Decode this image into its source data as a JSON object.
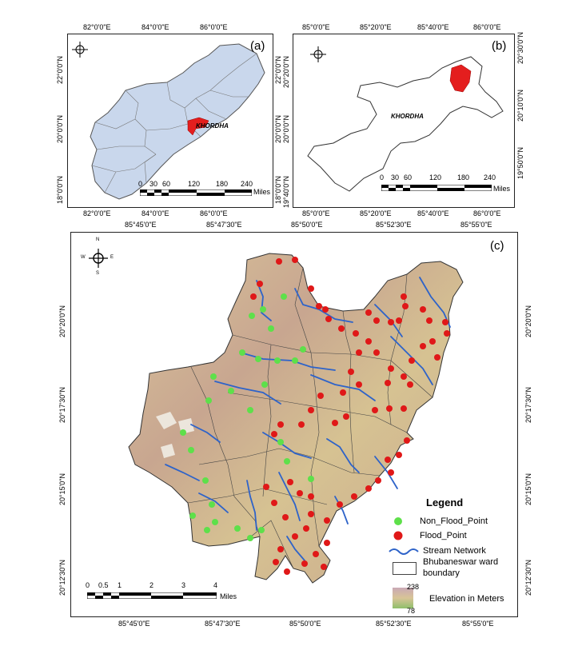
{
  "panel_a": {
    "letter": "(a)",
    "top_ticks": [
      "82°0'0\"E",
      "84°0'0\"E",
      "86°0'0\"E"
    ],
    "bottom_ticks": [
      "82°0'0\"E",
      "84°0'0\"E",
      "86°0'0\"E"
    ],
    "left_ticks": [
      "22°0'0\"N",
      "20°0'0\"N",
      "18°0'0\"N"
    ],
    "right_ticks": [
      "22°0'0\"N",
      "20°0'0\"N",
      "18°0'0\"N"
    ],
    "place": "KHORDHA",
    "scale": [
      "0",
      "30",
      "60",
      "120",
      "180",
      "240"
    ],
    "scale_unit": "Miles"
  },
  "panel_b": {
    "letter": "(b)",
    "top_ticks": [
      "85°0'0\"E",
      "85°20'0\"E",
      "85°40'0\"E",
      "86°0'0\"E"
    ],
    "bottom_ticks": [
      "85°0'0\"E",
      "85°20'0\"E",
      "85°40'0\"E",
      "86°0'0\"E"
    ],
    "left_ticks": [
      "20°20'0\"N",
      "20°0'0\"N",
      "19°40'0\"N"
    ],
    "right_ticks": [
      "20°30'0\"N",
      "20°10'0\"N",
      "19°50'0\"N"
    ],
    "place": "KHORDHA",
    "scale": [
      "0",
      "30",
      "60",
      "120",
      "180",
      "240"
    ],
    "scale_unit": "Miles"
  },
  "panel_c": {
    "letter": "(c)",
    "top_ticks": [
      "85°45'0\"E",
      "85°47'30\"E",
      "85°50'0\"E",
      "85°52'30\"E",
      "85°55'0\"E"
    ],
    "bottom_ticks": [
      "85°45'0\"E",
      "85°47'30\"E",
      "85°50'0\"E",
      "85°52'30\"E",
      "85°55'0\"E"
    ],
    "left_ticks": [
      "20°20'0\"N",
      "20°17'30\"N",
      "20°15'0\"N",
      "20°12'30\"N"
    ],
    "right_ticks": [
      "20°20'0\"N",
      "20°17'30\"N",
      "20°15'0\"N",
      "20°12'30\"N"
    ],
    "scale": [
      "0",
      "0.5",
      "1",
      "2",
      "3",
      "4"
    ],
    "scale_unit": "Miles",
    "legend": {
      "title": "Legend",
      "non_flood": "Non_Flood_Point",
      "flood": "Flood_Point",
      "stream": "Stream Network",
      "ward_line1": "Bhubaneswar ward",
      "ward_line2": "boundary",
      "elev_max": "238",
      "elev_label": "Elevation in Meters",
      "elev_min": "78"
    }
  },
  "colors": {
    "state_fill": "#c9d7ec",
    "highlight": "#e41e1e",
    "non_flood": "#5ee04a",
    "flood": "#e01818",
    "stream": "#2e63c9",
    "elev_top": "#c9a9b5",
    "elev_mid": "#d8c497",
    "elev_low": "#8fbf6a"
  },
  "compass": {
    "n": "N",
    "s": "S",
    "e": "E",
    "w": "W"
  }
}
